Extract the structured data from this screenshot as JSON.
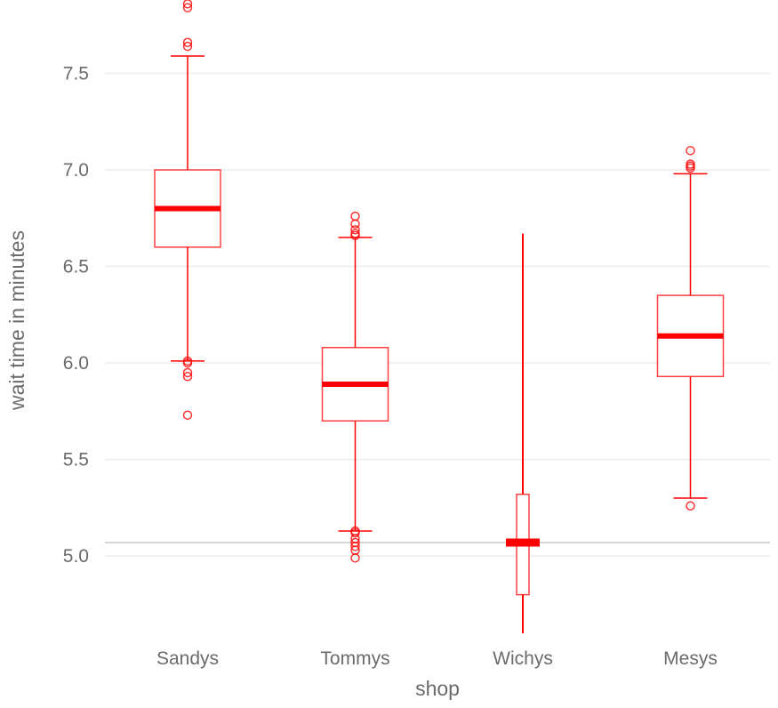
{
  "chart_data": {
    "type": "box",
    "xlabel": "shop",
    "ylabel": "wait time in minutes",
    "ylim": [
      4.6,
      7.88
    ],
    "y_ticks": [
      5.0,
      5.5,
      6.0,
      6.5,
      7.0,
      7.5
    ],
    "y_tick_labels": [
      "5.0",
      "5.5",
      "6.0",
      "6.5",
      "7.0",
      "7.5"
    ],
    "reference_line": 5.07,
    "grid": true,
    "color": "#ff0000",
    "series": [
      {
        "category": "Sandys",
        "q1": 6.6,
        "median": 6.8,
        "q3": 7.0,
        "whisker_low": 6.01,
        "whisker_high": 7.59,
        "outliers": [
          7.86,
          7.84,
          7.66,
          7.64,
          6.01,
          6.0,
          5.95,
          5.93,
          5.73
        ]
      },
      {
        "category": "Tommys",
        "q1": 5.7,
        "median": 5.89,
        "q3": 6.08,
        "whisker_low": 5.13,
        "whisker_high": 6.65,
        "outliers": [
          6.76,
          6.72,
          6.69,
          6.67,
          6.66,
          5.13,
          5.12,
          5.09,
          5.07,
          5.05,
          5.03,
          4.99
        ]
      },
      {
        "category": "Wichys",
        "q1": 4.8,
        "median": 5.07,
        "q3": 5.32,
        "whisker_low": 4.6,
        "whisker_high": 6.67,
        "outliers": []
      },
      {
        "category": "Mesys",
        "q1": 5.93,
        "median": 6.14,
        "q3": 6.35,
        "whisker_low": 5.3,
        "whisker_high": 6.98,
        "outliers": [
          7.1,
          7.03,
          7.02,
          7.01,
          5.26
        ]
      }
    ]
  }
}
